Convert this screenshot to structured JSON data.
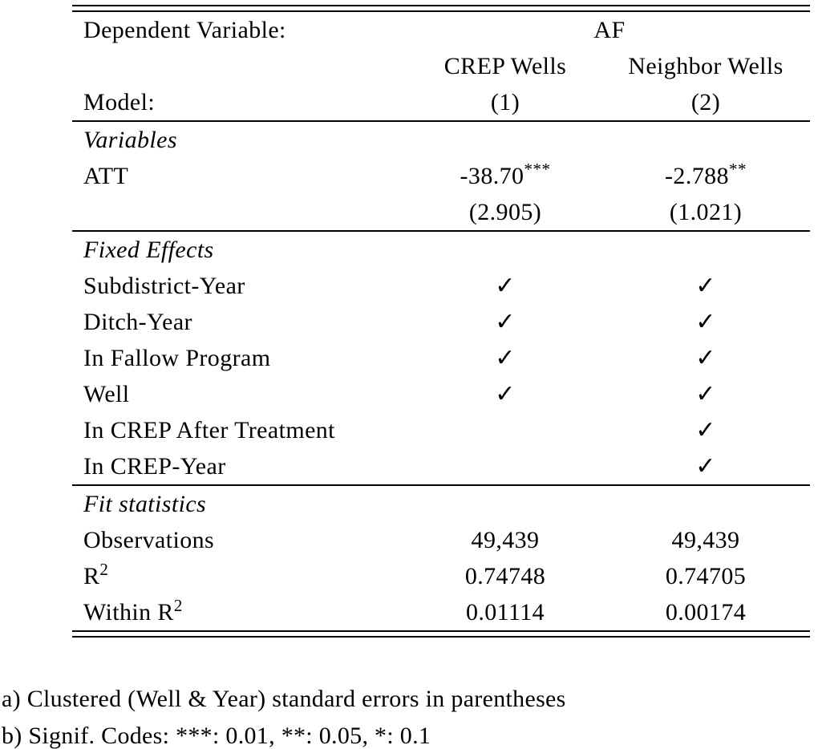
{
  "table": {
    "header": {
      "dependent_variable_label": "Dependent Variable:",
      "dependent_variable_value": "AF",
      "col1": "CREP Wells",
      "col2": "Neighbor Wells",
      "model_label": "Model:",
      "model_col1": "(1)",
      "model_col2": "(2)"
    },
    "variables": {
      "section_label": "Variables",
      "att": {
        "label": "ATT",
        "col1_value": "-38.70",
        "col1_stars": "***",
        "col2_value": "-2.788",
        "col2_stars": "**",
        "col1_se": "(2.905)",
        "col2_se": "(1.021)"
      }
    },
    "fixed_effects": {
      "section_label": "Fixed Effects",
      "rows": [
        {
          "label": "Subdistrict-Year",
          "col1": "✓",
          "col2": "✓"
        },
        {
          "label": "Ditch-Year",
          "col1": "✓",
          "col2": "✓"
        },
        {
          "label": "In Fallow Program",
          "col1": "✓",
          "col2": "✓"
        },
        {
          "label": "Well",
          "col1": "✓",
          "col2": "✓"
        },
        {
          "label": "In CREP After Treatment",
          "col1": "",
          "col2": "✓"
        },
        {
          "label": "In CREP-Year",
          "col1": "",
          "col2": "✓"
        }
      ]
    },
    "fit_statistics": {
      "section_label": "Fit statistics",
      "rows": [
        {
          "label": "Observations",
          "label_sup": "",
          "col1": "49,439",
          "col2": "49,439"
        },
        {
          "label": "R",
          "label_sup": "2",
          "col1": "0.74748",
          "col2": "0.74705"
        },
        {
          "label": "Within R",
          "label_sup": "2",
          "col1": "0.01114",
          "col2": "0.00174"
        }
      ]
    }
  },
  "notes": {
    "a": "a) Clustered (Well & Year) standard errors in parentheses",
    "b": "b) Signif. Codes: ***: 0.01, **: 0.05, *: 0.1"
  }
}
